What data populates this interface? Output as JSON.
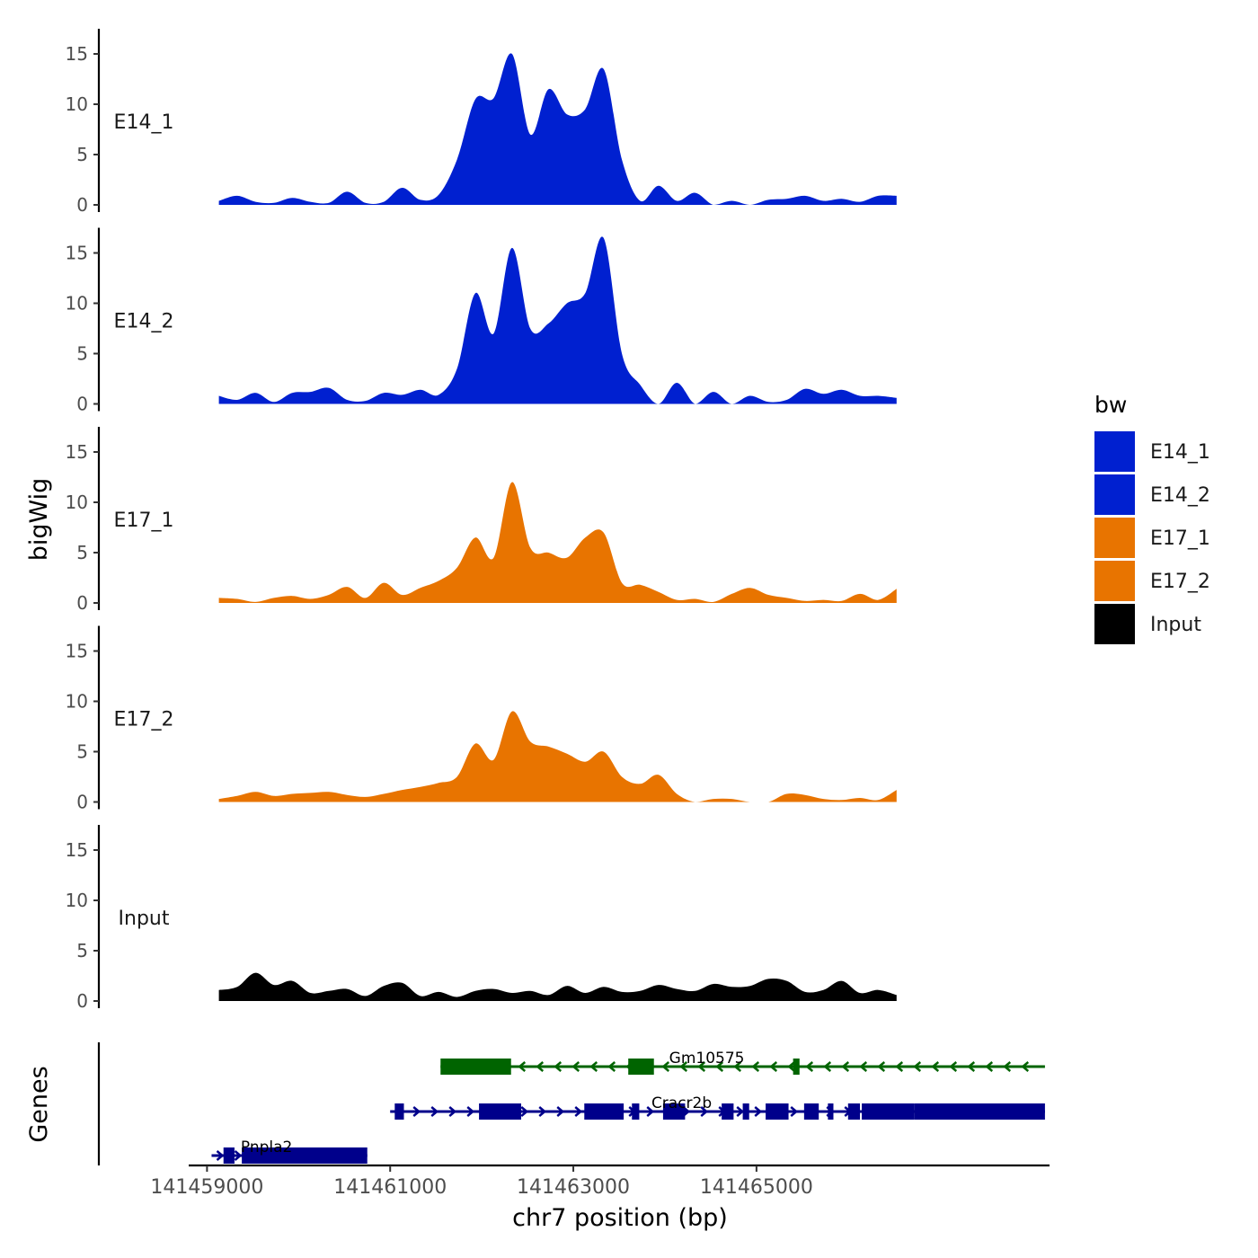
{
  "chart_data": {
    "type": "area",
    "title": "",
    "xlabel": "chr7 position (bp)",
    "ylabel": "bigWig",
    "genes_label": "Genes",
    "xlim": [
      141458800,
      141468200
    ],
    "ylim": [
      0,
      17.5
    ],
    "x_ticks": [
      141459000,
      141461000,
      141463000,
      141465000
    ],
    "x_tick_labels": [
      "141459000",
      "141461000",
      "141463000",
      "141465000"
    ],
    "y_ticks": [
      0,
      5,
      10,
      15
    ],
    "y_tick_labels": [
      "0",
      "5",
      "10",
      "15"
    ],
    "legend": {
      "title": "bw",
      "position": "right",
      "entries": [
        {
          "label": "E14_1",
          "color": "#0020d0"
        },
        {
          "label": "E14_2",
          "color": "#0020d0"
        },
        {
          "label": "E17_1",
          "color": "#e87400"
        },
        {
          "label": "E17_2",
          "color": "#e87400"
        },
        {
          "label": "Input",
          "color": "#000000"
        }
      ]
    },
    "x": [
      141459130,
      141459330,
      141459530,
      141459730,
      141459930,
      141460130,
      141460330,
      141460530,
      141460730,
      141460930,
      141461130,
      141461330,
      141461530,
      141461730,
      141461930,
      141462130,
      141462330,
      141462530,
      141462730,
      141462930,
      141463130,
      141463330,
      141463530,
      141463730,
      141463930,
      141464130,
      141464330,
      141464530,
      141464730,
      141464930,
      141465130,
      141465330,
      141465530,
      141465730,
      141465930,
      141466130,
      141466330,
      141466530
    ],
    "series": [
      {
        "name": "E14_1",
        "color": "#0020d0",
        "values": [
          0.4,
          0.9,
          0.3,
          0.2,
          0.7,
          0.3,
          0.2,
          1.3,
          0.2,
          0.3,
          1.7,
          0.5,
          1.0,
          4.5,
          10.5,
          10.6,
          15.0,
          7.0,
          11.5,
          9.0,
          9.5,
          13.5,
          4.5,
          0.4,
          1.9,
          0.4,
          1.2,
          0,
          0.4,
          0,
          0.5,
          0.6,
          0.9,
          0.4,
          0.6,
          0.3,
          0.9,
          0.9
        ]
      },
      {
        "name": "E14_2",
        "color": "#0020d0",
        "values": [
          0.8,
          0.4,
          1.1,
          0.2,
          1.1,
          1.2,
          1.6,
          0.4,
          0.3,
          1.1,
          0.9,
          1.4,
          0.9,
          3.5,
          11.0,
          7.0,
          15.5,
          7.5,
          8.0,
          10.0,
          11.0,
          16.5,
          5.0,
          1.9,
          0,
          2.1,
          0,
          1.2,
          0,
          0.8,
          0.2,
          0.4,
          1.5,
          1.0,
          1.4,
          0.8,
          0.8,
          0.6
        ]
      },
      {
        "name": "E17_1",
        "color": "#e87400",
        "values": [
          0.5,
          0.4,
          0.1,
          0.5,
          0.7,
          0.4,
          0.8,
          1.6,
          0.5,
          2.0,
          0.8,
          1.5,
          2.2,
          3.5,
          6.5,
          4.5,
          12.0,
          5.5,
          5.0,
          4.5,
          6.5,
          7.0,
          2.0,
          1.8,
          1.1,
          0.3,
          0.4,
          0.1,
          0.9,
          1.5,
          0.8,
          0.5,
          0.2,
          0.3,
          0.2,
          0.9,
          0.3,
          1.4
        ]
      },
      {
        "name": "E17_2",
        "color": "#e87400",
        "values": [
          0.3,
          0.6,
          1.0,
          0.6,
          0.8,
          0.9,
          1.0,
          0.7,
          0.5,
          0.8,
          1.2,
          1.5,
          1.9,
          2.5,
          5.8,
          4.2,
          9.0,
          6.0,
          5.5,
          4.8,
          4.0,
          5.0,
          2.5,
          1.8,
          2.7,
          0.8,
          0,
          0.3,
          0.3,
          0,
          0,
          0.8,
          0.7,
          0.3,
          0.2,
          0.4,
          0.2,
          1.2
        ]
      },
      {
        "name": "Input",
        "color": "#000000",
        "values": [
          1.1,
          1.4,
          2.8,
          1.6,
          2.0,
          0.8,
          1.0,
          1.2,
          0.5,
          1.5,
          1.8,
          0.5,
          0.9,
          0.4,
          1.0,
          1.2,
          0.8,
          1.0,
          0.6,
          1.5,
          0.8,
          1.4,
          0.9,
          1.0,
          1.6,
          1.2,
          1.0,
          1.7,
          1.4,
          1.5,
          2.2,
          2.0,
          0.9,
          1.1,
          2.0,
          0.8,
          1.1,
          0.6
        ]
      }
    ],
    "genes": [
      {
        "name": "Gm10575",
        "color": "#006400",
        "strand": "-",
        "row": 1,
        "start": 141461550,
        "end": 141468150,
        "exons": [
          [
            141461550,
            141462320
          ],
          [
            141463600,
            141463880
          ],
          [
            141465400,
            141465470
          ]
        ]
      },
      {
        "name": "Cracr2b",
        "color": "#00008b",
        "strand": "+",
        "row": 2,
        "start": 141461000,
        "end": 141468150,
        "exons": [
          [
            141461050,
            141461150
          ],
          [
            141461970,
            141462430
          ],
          [
            141463120,
            141463550
          ],
          [
            141463640,
            141463720
          ],
          [
            141463980,
            141464220
          ],
          [
            141464620,
            141464750
          ],
          [
            141464850,
            141464920
          ],
          [
            141465100,
            141465350
          ],
          [
            141465520,
            141465680
          ],
          [
            141465780,
            141465840
          ],
          [
            141466000,
            141466130
          ],
          [
            141466150,
            141466720
          ],
          [
            141466720,
            141468150
          ]
        ]
      },
      {
        "name": "Pnpla2",
        "color": "#00008b",
        "strand": "+",
        "row": 3,
        "start": 141459050,
        "end": 141460750,
        "exons": [
          [
            141459180,
            141459300
          ],
          [
            141459380,
            141460750
          ]
        ]
      }
    ]
  }
}
